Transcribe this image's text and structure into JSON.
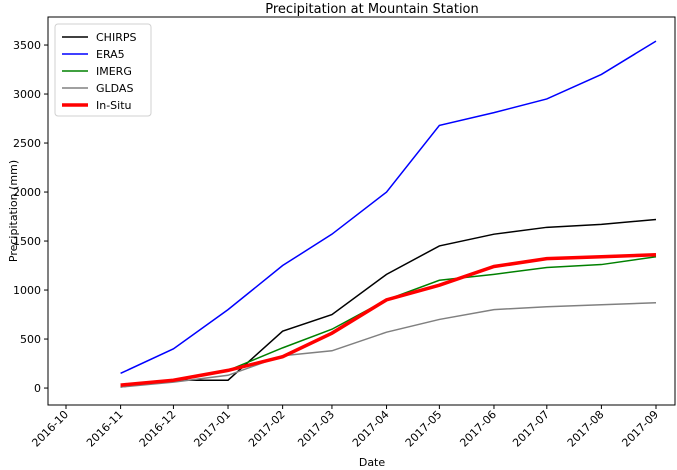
{
  "chart_data": {
    "type": "line",
    "title": "Precipitation at Mountain Station",
    "xlabel": "Date",
    "ylabel": "Precipitation (mm)",
    "x": [
      "2016-11",
      "2016-12",
      "2017-01",
      "2017-02",
      "2017-03",
      "2017-04",
      "2017-05",
      "2017-06",
      "2017-07",
      "2017-08",
      "2017-09"
    ],
    "series": [
      {
        "name": "CHIRPS",
        "color": "#000000",
        "width": 1.5,
        "values": [
          10,
          80,
          80,
          580,
          750,
          1160,
          1450,
          1570,
          1640,
          1670,
          1720
        ]
      },
      {
        "name": "ERA5",
        "color": "#0000ff",
        "width": 1.5,
        "values": [
          150,
          400,
          800,
          1250,
          1570,
          2000,
          2680,
          2810,
          2950,
          3200,
          3540
        ]
      },
      {
        "name": "IMERG",
        "color": "#008000",
        "width": 1.5,
        "values": [
          20,
          80,
          180,
          410,
          600,
          900,
          1100,
          1160,
          1230,
          1260,
          1340
        ]
      },
      {
        "name": "GLDAS",
        "color": "#808080",
        "width": 1.5,
        "values": [
          10,
          60,
          130,
          330,
          380,
          570,
          700,
          800,
          830,
          850,
          870
        ]
      },
      {
        "name": "In-Situ",
        "color": "#ff0000",
        "width": 3.5,
        "values": [
          30,
          80,
          180,
          320,
          560,
          900,
          1050,
          1240,
          1320,
          1340,
          1360
        ]
      }
    ],
    "xlim": [
      "2016-10",
      "2017-09"
    ],
    "xticks": [
      "2016-10",
      "2016-11",
      "2016-12",
      "2017-01",
      "2017-02",
      "2017-03",
      "2017-04",
      "2017-05",
      "2017-06",
      "2017-07",
      "2017-08",
      "2017-09"
    ],
    "ylim": [
      -173,
      3786
    ],
    "yticks": [
      0,
      500,
      1000,
      1500,
      2000,
      2500,
      3000,
      3500
    ],
    "legend": "upper left",
    "grid": false
  }
}
